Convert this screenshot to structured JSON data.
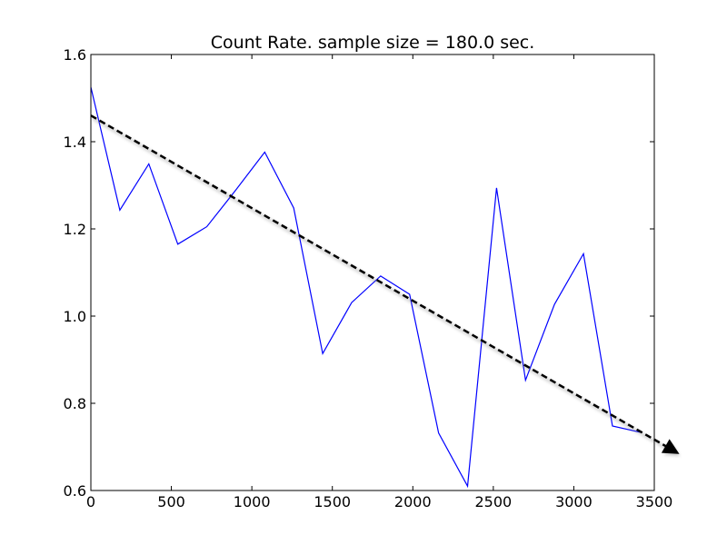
{
  "chart_data": {
    "type": "line",
    "title": "Count Rate. sample size = 180.0 sec.",
    "xlabel": "",
    "ylabel": "",
    "xlim": [
      0,
      3500
    ],
    "ylim": [
      0.6,
      1.6
    ],
    "xticks": [
      0,
      500,
      1000,
      1500,
      2000,
      2500,
      3000,
      3500
    ],
    "yticks": [
      0.6,
      0.8,
      1.0,
      1.2,
      1.4,
      1.6
    ],
    "xtick_labels": [
      "0",
      "500",
      "1000",
      "1500",
      "2000",
      "2500",
      "3000",
      "3500"
    ],
    "ytick_labels": [
      "0.6",
      "0.8",
      "1.0",
      "1.2",
      "1.4",
      "1.6"
    ],
    "grid": false,
    "series": [
      {
        "color": "#0000ff",
        "style": "solid",
        "x": [
          0,
          180,
          360,
          540,
          720,
          900,
          1080,
          1260,
          1440,
          1620,
          1800,
          1980,
          2160,
          2340,
          2520,
          2700,
          2880,
          3060,
          3240,
          3420
        ],
        "y": [
          1.525,
          1.243,
          1.349,
          1.165,
          1.205,
          1.289,
          1.376,
          1.248,
          0.914,
          1.031,
          1.092,
          1.05,
          0.732,
          0.61,
          1.294,
          0.853,
          1.027,
          1.143,
          0.748,
          0.733
        ]
      }
    ],
    "annotations": [
      {
        "type": "arrow",
        "style": "dashed",
        "color": "#000000",
        "from": [
          0,
          1.46
        ],
        "to": [
          3650,
          0.685
        ]
      }
    ]
  }
}
